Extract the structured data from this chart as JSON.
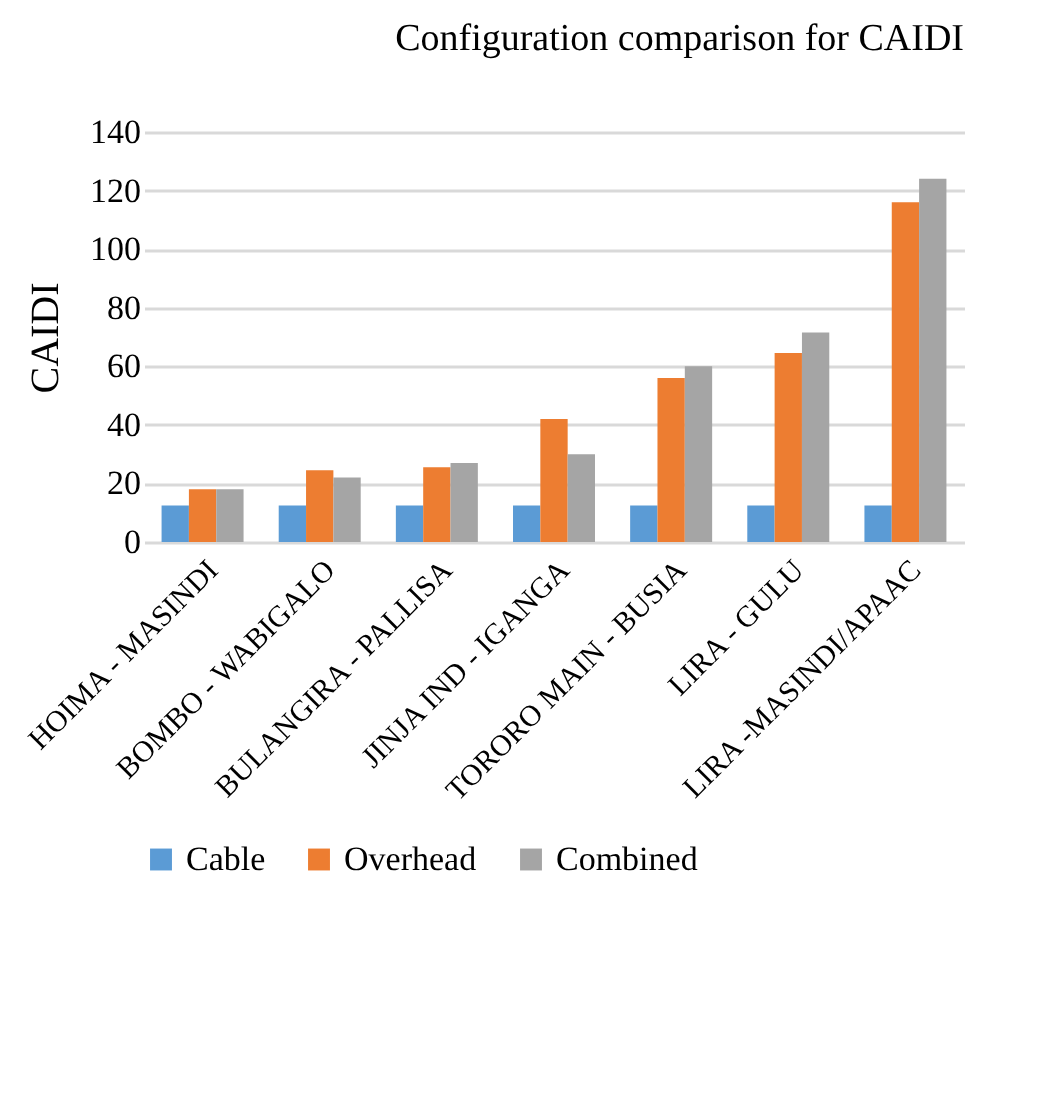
{
  "chart_data": {
    "type": "bar",
    "title": "Configuration comparison for CAIDI",
    "ylabel": "CAIDI",
    "categories": [
      "HOIMA - MASINDI",
      "BOMBO - WABIGALO",
      "BULANGIRA - PALLISA",
      "JINJA IND - IGANGA",
      "TORORO MAIN - BUSIA",
      "LIRA -  GULU",
      "LIRA -MASINDI/APAAC"
    ],
    "series": [
      {
        "name": "Cable",
        "color": "#5b9bd5",
        "values": [
          12.5,
          12.5,
          12.5,
          12.5,
          12.5,
          12.5,
          12.5
        ]
      },
      {
        "name": "Overhead",
        "color": "#ed7d31",
        "values": [
          18,
          24.5,
          25.5,
          42,
          56,
          64.5,
          116
        ]
      },
      {
        "name": "Combined",
        "color": "#a5a5a5",
        "values": [
          18,
          22,
          27,
          30,
          60,
          71.5,
          124
        ]
      }
    ],
    "ylim": [
      0,
      140
    ],
    "yticks": [
      0,
      20,
      40,
      60,
      80,
      100,
      120,
      140
    ],
    "grid": "y",
    "legend": "bottom"
  }
}
